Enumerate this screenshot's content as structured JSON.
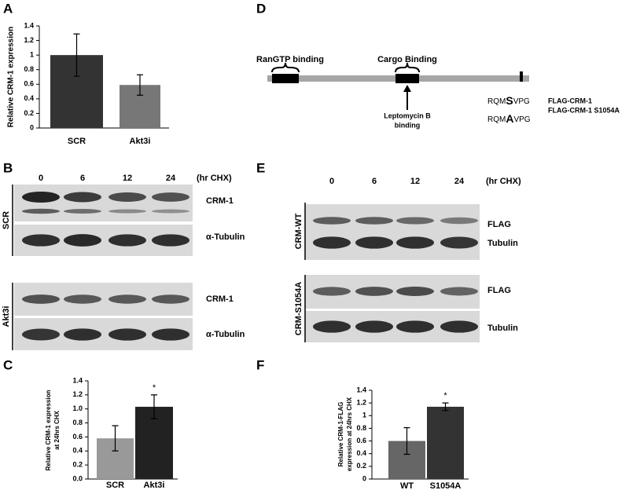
{
  "chart_data": [
    {
      "type": "bar",
      "ylabel": [
        "Relative CRM-1 expression"
      ],
      "categories": [
        "SCR",
        "Akt3i"
      ],
      "values": [
        1.0,
        0.59
      ],
      "errors": [
        0.29,
        0.14
      ],
      "colors": [
        "#333333",
        "#777777"
      ],
      "ylim": [
        0,
        1.4
      ],
      "yticks": [
        0,
        0.2,
        0.4,
        0.6,
        0.8,
        1,
        1.2,
        1.4
      ]
    },
    {
      "type": "bar",
      "ylabel": [
        "Relative CRM-1 expression",
        "at 24hrs CHX"
      ],
      "categories": [
        "SCR",
        "Akt3i"
      ],
      "values": [
        0.58,
        1.03
      ],
      "errors": [
        0.18,
        0.17
      ],
      "colors": [
        "#999999",
        "#222222"
      ],
      "annotation": "*",
      "ylim": [
        0,
        1.4
      ],
      "yticks": [
        {
          "value": 0,
          "label": "0.0"
        },
        0.2,
        0.4,
        0.6,
        0.8,
        {
          "value": 1,
          "label": "1.0"
        },
        1.2,
        1.4
      ]
    },
    {
      "type": "bar",
      "ylabel": [
        "Relative CRM-1-FLAG",
        "expression at 24hrs CHX"
      ],
      "categories": [
        "WT",
        "S1054A"
      ],
      "values": [
        0.6,
        1.14
      ],
      "errors": [
        0.21,
        0.06
      ],
      "colors": [
        "#666666",
        "#333333"
      ],
      "annotation": "*",
      "ylim": [
        0,
        1.4
      ],
      "yticks": [
        0,
        0.2,
        0.4,
        0.6,
        0.8,
        1,
        1.2,
        1.4
      ]
    }
  ],
  "panel_labels": [
    "A",
    "B",
    "C",
    "D",
    "E",
    "F"
  ],
  "blot_b": {
    "times": [
      "0",
      "6",
      "12",
      "24"
    ],
    "unit": "(hr CHX)",
    "bands": [
      "CRM-1",
      "α-Tubulin",
      "CRM-1",
      "α-Tubulin"
    ],
    "groups": [
      "SCR",
      "Akt3i"
    ]
  },
  "blot_e": {
    "times": [
      "0",
      "6",
      "12",
      "24"
    ],
    "unit": "(hr CHX)",
    "bands": [
      "FLAG",
      "Tubulin",
      "FLAG",
      "Tubulin"
    ],
    "groups": [
      "CRM-WT",
      "CRM-S1054A"
    ]
  },
  "diagram": {
    "domains": [
      "RanGTP binding",
      "Cargo Binding"
    ],
    "leptomycin": [
      "Leptomycin B",
      "binding"
    ],
    "sequences": [
      {
        "prefix": "RQM",
        "residue": "S",
        "suffix": "VPG"
      },
      {
        "prefix": "RQM",
        "residue": "A",
        "suffix": "VPG"
      }
    ],
    "constructs": [
      "FLAG-CRM-1",
      "FLAG-CRM-1 S1054A"
    ]
  }
}
